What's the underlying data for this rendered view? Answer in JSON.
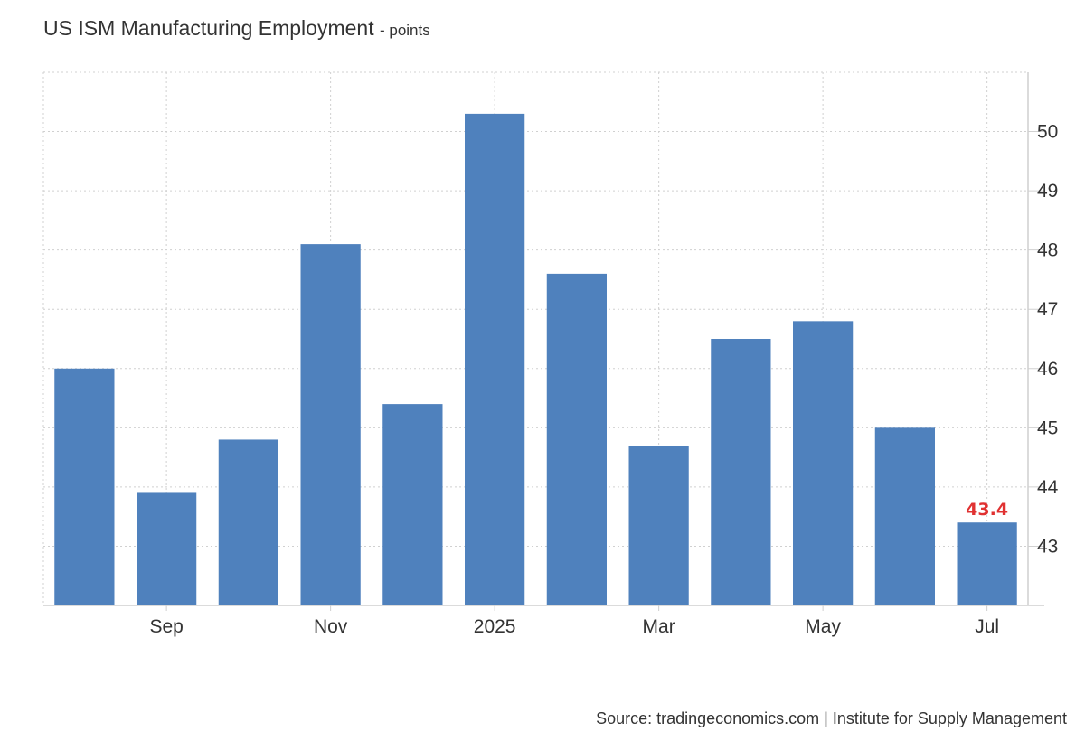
{
  "title": "US ISM Manufacturing Employment",
  "units_label": "- points",
  "source": "Source: tradingeconomics.com | Institute for Supply Management",
  "colors": {
    "bar": "#4f81bd",
    "highlight_label": "#e03131",
    "grid": "#d0d0d0",
    "text": "#333333"
  },
  "chart_data": {
    "type": "bar",
    "categories": [
      "2024-08",
      "2024-09",
      "2024-10",
      "2024-11",
      "2024-12",
      "2025-01",
      "2025-02",
      "2025-03",
      "2025-04",
      "2025-05",
      "2025-06",
      "2025-07"
    ],
    "values": [
      46.0,
      43.9,
      44.8,
      48.1,
      45.4,
      50.3,
      47.6,
      44.7,
      46.5,
      46.8,
      45.0,
      43.4
    ],
    "x_tick_labels": [
      {
        "index": 1,
        "label": "Sep"
      },
      {
        "index": 3,
        "label": "Nov"
      },
      {
        "index": 5,
        "label": "2025"
      },
      {
        "index": 7,
        "label": "Mar"
      },
      {
        "index": 9,
        "label": "May"
      },
      {
        "index": 11,
        "label": "Jul"
      }
    ],
    "y_ticks": [
      43,
      44,
      45,
      46,
      47,
      48,
      49,
      50
    ],
    "ylim": [
      42.0,
      51.0
    ],
    "y_axis_side": "right",
    "grid": true,
    "highlight": {
      "index": 11,
      "label": "43.4"
    },
    "xlabel": "",
    "ylabel": ""
  }
}
